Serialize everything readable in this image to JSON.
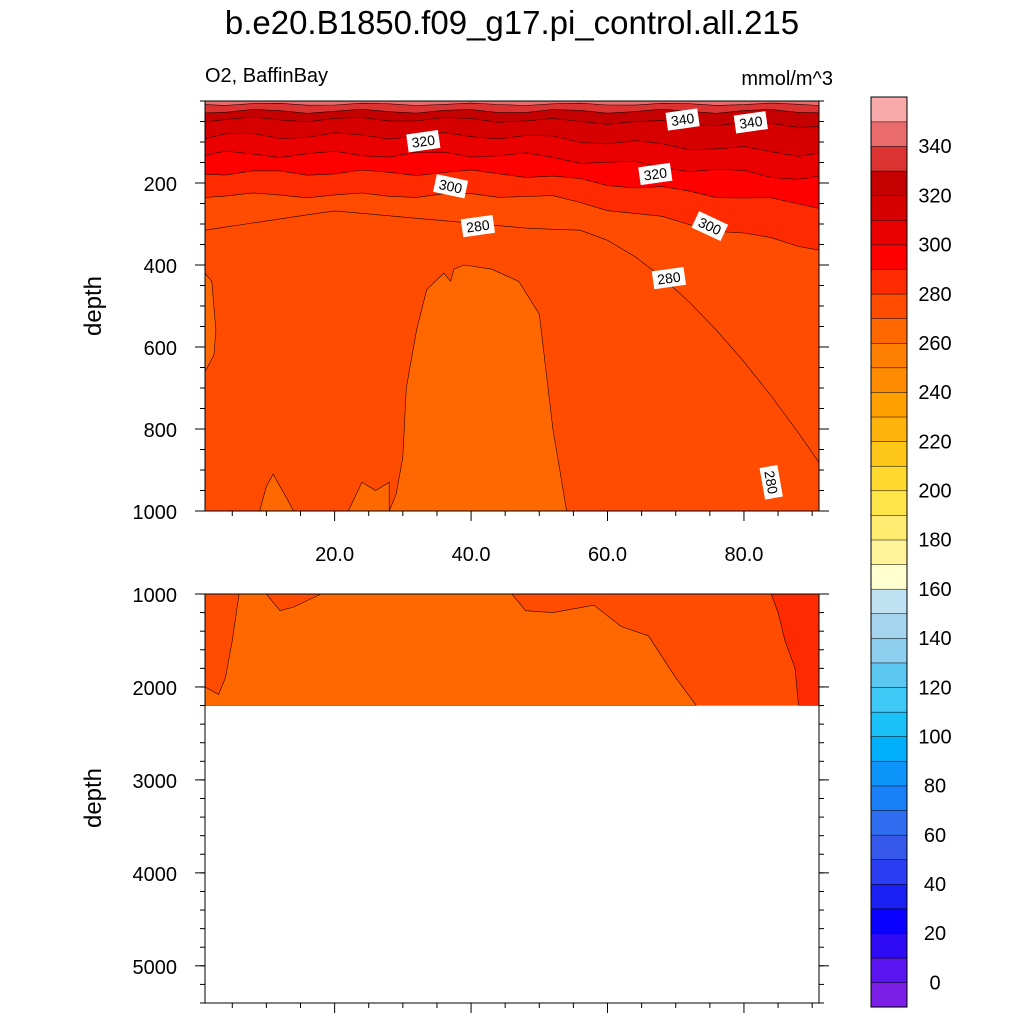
{
  "chart_data": {
    "type": "heatmap",
    "title": "b.e20.B1850.f09_g17.pi_control.all.215",
    "subtitle_left": "O2, BaffinBay",
    "subtitle_right": "mmol/m^3",
    "ylabel": "depth",
    "panels": [
      {
        "name": "upper",
        "xlim": [
          1,
          91
        ],
        "ylim": [
          0,
          1000
        ],
        "y_reversed": true,
        "x_ticks": [
          20,
          40,
          60,
          80
        ],
        "x_tick_labels": [
          "20.0",
          "40.0",
          "60.0",
          "80.0"
        ],
        "y_ticks": [
          200,
          400,
          600,
          800,
          1000
        ],
        "y_tick_labels": [
          "200",
          "400",
          "600",
          "800",
          "1000"
        ],
        "contour_labels": [
          {
            "text": "340",
            "x": 71,
            "y": 45
          },
          {
            "text": "340",
            "x": 81,
            "y": 52
          },
          {
            "text": "320",
            "x": 33,
            "y": 98
          },
          {
            "text": "320",
            "x": 67,
            "y": 178
          },
          {
            "text": "300",
            "x": 37,
            "y": 208
          },
          {
            "text": "300",
            "x": 75,
            "y": 305
          },
          {
            "text": "280",
            "x": 41,
            "y": 305
          },
          {
            "text": "280",
            "x": 69,
            "y": 432
          },
          {
            "text": "280",
            "x": 84,
            "y": 930
          }
        ]
      },
      {
        "name": "lower",
        "xlim": [
          1,
          91
        ],
        "ylim": [
          1000,
          5400
        ],
        "y_reversed": true,
        "x_ticks": [
          20,
          40,
          60,
          80
        ],
        "x_tick_labels": [],
        "y_ticks": [
          1000,
          2000,
          3000,
          4000,
          5000
        ],
        "y_tick_labels": [
          "1000",
          "2000",
          "3000",
          "4000",
          "5000"
        ],
        "data_bottom_depth": 2200
      }
    ],
    "colorbar": {
      "levels": [
        0,
        10,
        20,
        30,
        40,
        50,
        60,
        70,
        80,
        90,
        100,
        110,
        120,
        130,
        140,
        150,
        160,
        170,
        180,
        190,
        200,
        210,
        220,
        230,
        240,
        250,
        260,
        270,
        280,
        290,
        300,
        310,
        320,
        330,
        340,
        350
      ],
      "tick_labels": [
        "0",
        "20",
        "40",
        "60",
        "80",
        "100",
        "120",
        "140",
        "160",
        "180",
        "200",
        "220",
        "240",
        "260",
        "280",
        "300",
        "320",
        "340"
      ],
      "colors": [
        "#7b1fe6",
        "#5a14f0",
        "#2f0af5",
        "#0a00ff",
        "#1a1ff2",
        "#2a3df0",
        "#3558ea",
        "#2f6ef0",
        "#1a80f7",
        "#0e95fc",
        "#00aefa",
        "#1ac0f8",
        "#3ec8f5",
        "#5cc8f2",
        "#8ecff0",
        "#a5d5ee",
        "#bfe1f2",
        "#ffffd0",
        "#fff39a",
        "#ffec70",
        "#ffe54a",
        "#ffd92e",
        "#ffc61a",
        "#ffb30d",
        "#ffa000",
        "#ff8c00",
        "#ff7f00",
        "#ff6800",
        "#ff4c00",
        "#ff2b00",
        "#ff0000",
        "#eb0000",
        "#d70000",
        "#c40000",
        "#dd3232",
        "#e96b6b",
        "#f8aaaa"
      ]
    }
  }
}
